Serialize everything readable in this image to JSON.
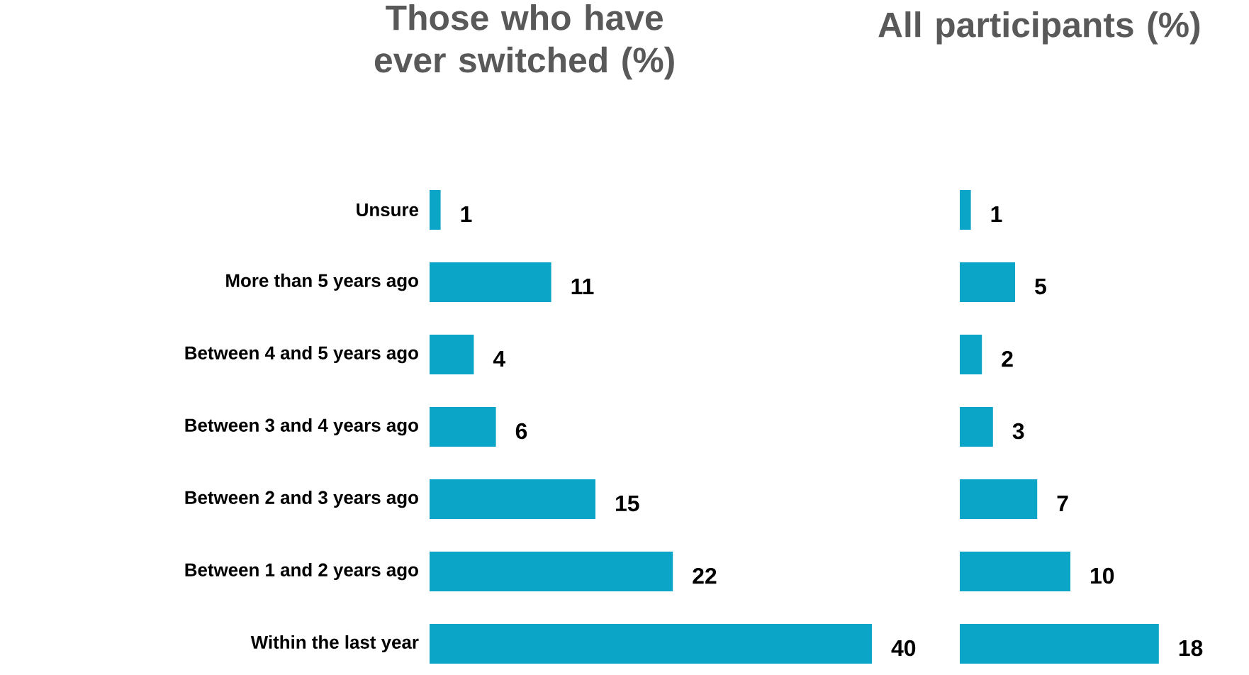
{
  "chart_data": [
    {
      "type": "bar",
      "orientation": "horizontal",
      "title": "Those who have ever switched  (%)",
      "categories": [
        "Unsure",
        "More than 5 years ago",
        "Between 4 and 5 years ago",
        "Between 3 and 4 years ago",
        "Between 2 and 3 years ago",
        "Between 1 and 2 years ago",
        "Within the last year"
      ],
      "values": [
        1,
        11,
        4,
        6,
        15,
        22,
        40
      ],
      "color": "#0ba5c8",
      "data_labels": true
    },
    {
      "type": "bar",
      "orientation": "horizontal",
      "title": "All participants (%)",
      "categories": [
        null,
        null,
        null,
        null,
        null,
        null,
        null
      ],
      "values": [
        1,
        5,
        2,
        3,
        7,
        10,
        18
      ],
      "color": "#0ba5c8",
      "data_labels": true
    }
  ]
}
